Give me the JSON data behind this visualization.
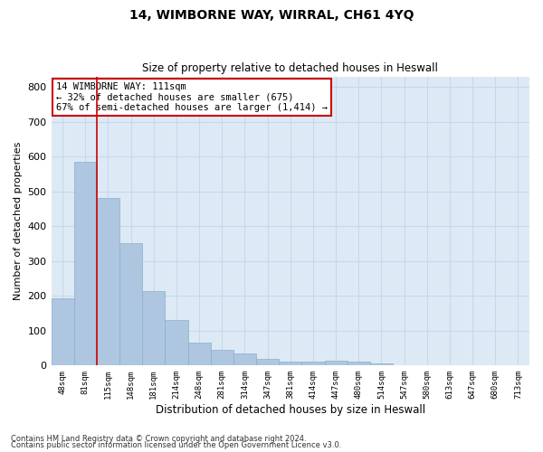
{
  "title1": "14, WIMBORNE WAY, WIRRAL, CH61 4YQ",
  "title2": "Size of property relative to detached houses in Heswall",
  "xlabel": "Distribution of detached houses by size in Heswall",
  "ylabel": "Number of detached properties",
  "categories": [
    "48sqm",
    "81sqm",
    "115sqm",
    "148sqm",
    "181sqm",
    "214sqm",
    "248sqm",
    "281sqm",
    "314sqm",
    "347sqm",
    "381sqm",
    "414sqm",
    "447sqm",
    "480sqm",
    "514sqm",
    "547sqm",
    "580sqm",
    "613sqm",
    "647sqm",
    "680sqm",
    "713sqm"
  ],
  "values": [
    193,
    585,
    480,
    350,
    213,
    130,
    65,
    45,
    35,
    18,
    10,
    10,
    13,
    10,
    7,
    0,
    0,
    0,
    0,
    0,
    0
  ],
  "bar_color": "#aec6df",
  "bar_edge_color": "#8ab0cc",
  "vline_index": 2,
  "vline_color": "#cc0000",
  "annotation_text": "14 WIMBORNE WAY: 111sqm\n← 32% of detached houses are smaller (675)\n67% of semi-detached houses are larger (1,414) →",
  "annotation_box_color": "#ffffff",
  "annotation_box_edge_color": "#cc0000",
  "ylim": [
    0,
    830
  ],
  "yticks": [
    0,
    100,
    200,
    300,
    400,
    500,
    600,
    700,
    800
  ],
  "grid_color": "#c5d8ea",
  "background_color": "#ddeaf5",
  "footer1": "Contains HM Land Registry data © Crown copyright and database right 2024.",
  "footer2": "Contains public sector information licensed under the Open Government Licence v3.0."
}
